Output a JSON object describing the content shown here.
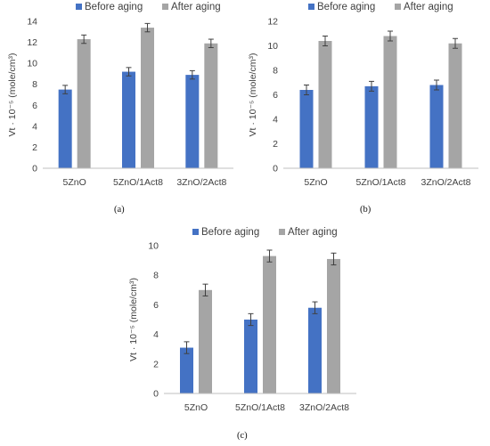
{
  "colors": {
    "before": "#4472C4",
    "after": "#A5A5A5",
    "axis": "#BFBFBF",
    "text": "#404040",
    "error": "#404040"
  },
  "chart_data": [
    {
      "panel": "(a)",
      "type": "bar",
      "categories": [
        "5ZnO",
        "5ZnO/1Act8",
        "3ZnO/2Act8"
      ],
      "series": [
        {
          "name": "Before aging",
          "values": [
            7.5,
            9.2,
            8.9
          ],
          "errors": [
            0.4,
            0.4,
            0.4
          ]
        },
        {
          "name": "After aging",
          "values": [
            12.3,
            13.4,
            11.9
          ],
          "errors": [
            0.4,
            0.4,
            0.4
          ]
        }
      ],
      "ylabel": "Vt · 10⁻⁵ (mole/cm³)",
      "ylim": [
        0,
        14
      ],
      "yticks": [
        0,
        2,
        4,
        6,
        8,
        10,
        12,
        14
      ],
      "legend": "top",
      "grid": false
    },
    {
      "panel": "(b)",
      "type": "bar",
      "categories": [
        "5ZnO",
        "5ZnO/1Act8",
        "3ZnO/2Act8"
      ],
      "series": [
        {
          "name": "Before aging",
          "values": [
            6.4,
            6.7,
            6.8
          ],
          "errors": [
            0.4,
            0.4,
            0.4
          ]
        },
        {
          "name": "After aging",
          "values": [
            10.4,
            10.8,
            10.2
          ],
          "errors": [
            0.4,
            0.4,
            0.4
          ]
        }
      ],
      "ylabel": "Vt · 10⁻⁵ (mole/cm³)",
      "ylim": [
        0,
        12
      ],
      "yticks": [
        0,
        2,
        4,
        6,
        8,
        10,
        12
      ],
      "legend": "top",
      "grid": false
    },
    {
      "panel": "(c)",
      "type": "bar",
      "categories": [
        "5ZnO",
        "5ZnO/1Act8",
        "3ZnO/2Act8"
      ],
      "series": [
        {
          "name": "Before aging",
          "values": [
            3.1,
            5.0,
            5.8
          ],
          "errors": [
            0.4,
            0.4,
            0.4
          ]
        },
        {
          "name": "After aging",
          "values": [
            7.0,
            9.3,
            9.1
          ],
          "errors": [
            0.4,
            0.4,
            0.4
          ]
        }
      ],
      "ylabel": "Vt · 10⁻⁵ (mole/cm³)",
      "ylim": [
        0,
        10
      ],
      "yticks": [
        0,
        2,
        4,
        6,
        8,
        10
      ],
      "legend": "top",
      "grid": false
    }
  ]
}
